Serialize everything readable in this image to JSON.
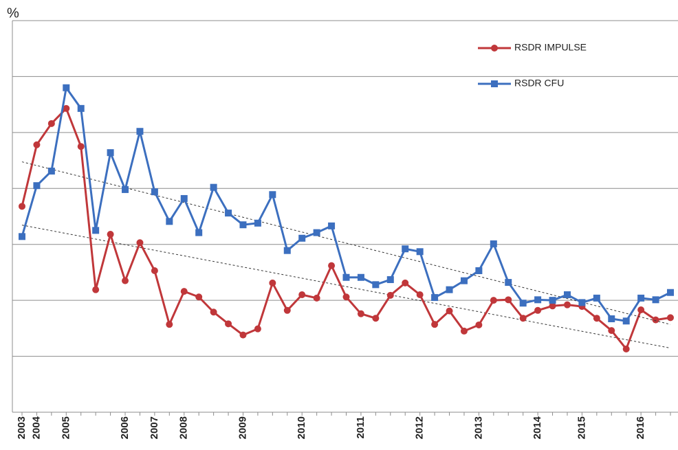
{
  "chart_data": {
    "type": "line",
    "y_unit_label": "%",
    "categories": [
      "2003",
      "2004",
      null,
      "2005",
      null,
      null,
      null,
      "2006",
      null,
      "2007",
      null,
      "2008",
      null,
      null,
      null,
      "2009",
      null,
      null,
      null,
      "2010",
      null,
      null,
      null,
      "2011",
      null,
      null,
      null,
      "2012",
      null,
      null,
      null,
      "2013",
      null,
      null,
      null,
      "2014",
      null,
      null,
      "2015",
      null,
      null,
      null,
      "2016",
      null,
      null
    ],
    "series": [
      {
        "name": "RSDR IMPULSE",
        "color": "#c0373a",
        "marker": "circle",
        "values": [
          3.68,
          4.78,
          5.16,
          5.43,
          4.75,
          2.19,
          3.18,
          2.35,
          3.03,
          2.53,
          1.57,
          2.16,
          2.06,
          1.79,
          1.58,
          1.38,
          1.49,
          2.31,
          1.82,
          2.1,
          2.04,
          2.62,
          2.06,
          1.76,
          1.68,
          2.09,
          2.31,
          2.1,
          1.57,
          1.81,
          1.45,
          1.56,
          2.0,
          2.01,
          1.68,
          1.82,
          1.9,
          1.92,
          1.89,
          1.68,
          1.46,
          1.13,
          1.83,
          1.65,
          1.69
        ]
      },
      {
        "name": "RSDR CFU",
        "color": "#3c6fbf",
        "marker": "square",
        "values": [
          3.14,
          4.05,
          4.31,
          5.8,
          5.43,
          3.25,
          4.64,
          3.98,
          5.02,
          3.94,
          3.41,
          3.82,
          3.21,
          4.02,
          3.56,
          3.35,
          3.38,
          3.89,
          2.89,
          3.11,
          3.21,
          3.33,
          2.41,
          2.41,
          2.28,
          2.37,
          2.92,
          2.87,
          2.05,
          2.19,
          2.35,
          2.53,
          3.01,
          2.32,
          1.95,
          2.01,
          2.0,
          2.1,
          1.96,
          2.04,
          1.67,
          1.63,
          2.04,
          2.01,
          2.14
        ]
      }
    ],
    "ylim": [
      0,
      7
    ],
    "yticks": [
      0,
      1,
      2,
      3,
      4,
      5,
      6,
      7
    ],
    "grid": true,
    "trendline": true,
    "legend": "top-right"
  }
}
